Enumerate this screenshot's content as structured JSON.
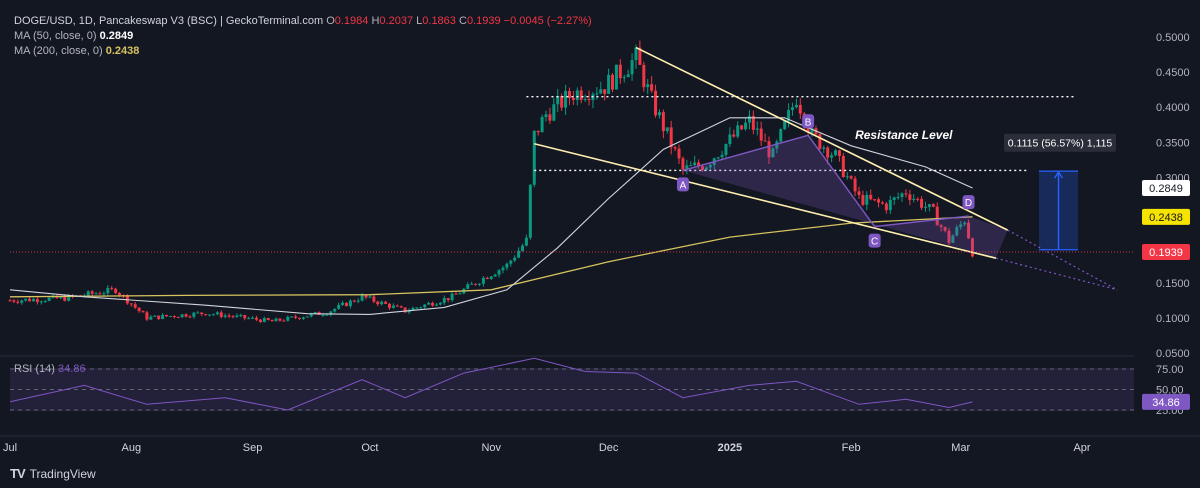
{
  "legend": {
    "pair": "DOGE/USD, 1D, Pancakeswap V3 (BSC) | GeckoTerminal.com",
    "o_label": "O",
    "o": "0.1984",
    "h_label": "H",
    "h": "0.2037",
    "l_label": "L",
    "l": "0.1863",
    "c_label": "C",
    "c": "0.1939",
    "change": "−0.0045 (−2.27%)",
    "ma50_label": "MA (50, close, 0)",
    "ma50": "0.2849",
    "ma200_label": "MA (200, close, 0)",
    "ma200": "0.2438"
  },
  "rsi_legend": {
    "label": "RSI (14)",
    "value": "34.86"
  },
  "branding": {
    "text": "TradingView"
  },
  "colors": {
    "background": "#131722",
    "up": "#089981",
    "down": "#f23645",
    "ma50": "#d1d4dc",
    "ma200": "#d6c25e",
    "rsi": "#7e57c2",
    "wedge": "#ffeeb0",
    "pattern": "#7e57c2",
    "projection": "#2962ff"
  },
  "chart_data": {
    "type": "candlestick",
    "price_axis": {
      "ticks": [
        "0.5000",
        "0.4500",
        "0.4000",
        "0.3500",
        "0.3000",
        "0.2500",
        "0.2000",
        "0.1500",
        "0.1000",
        "0.0500"
      ],
      "range": [
        0.05,
        0.5
      ]
    },
    "rsi_axis": {
      "ticks": [
        "75.00",
        "50.00",
        "25.00"
      ],
      "range": [
        20,
        80
      ]
    },
    "time_axis": [
      "Jul",
      "Aug",
      "Sep",
      "Oct",
      "Nov",
      "Dec",
      "2025",
      "Feb",
      "Mar",
      "Apr"
    ],
    "price_tags": {
      "ma50": "0.2849",
      "ma200": "0.2438",
      "last": "0.1939",
      "rsi": "34.86"
    },
    "anchors": [
      {
        "date": "2024-07-01",
        "close": 0.125
      },
      {
        "date": "2024-07-15",
        "close": 0.128
      },
      {
        "date": "2024-07-28",
        "close": 0.14
      },
      {
        "date": "2024-08-05",
        "close": 0.1
      },
      {
        "date": "2024-08-20",
        "close": 0.107
      },
      {
        "date": "2024-09-06",
        "close": 0.095
      },
      {
        "date": "2024-09-20",
        "close": 0.108
      },
      {
        "date": "2024-09-29",
        "close": 0.13
      },
      {
        "date": "2024-10-10",
        "close": 0.11
      },
      {
        "date": "2024-10-22",
        "close": 0.13
      },
      {
        "date": "2024-10-31",
        "close": 0.16
      },
      {
        "date": "2024-11-05",
        "close": 0.175
      },
      {
        "date": "2024-11-10",
        "close": 0.21
      },
      {
        "date": "2024-11-12",
        "close": 0.36
      },
      {
        "date": "2024-11-15",
        "close": 0.39
      },
      {
        "date": "2024-11-22",
        "close": 0.42
      },
      {
        "date": "2024-11-30",
        "close": 0.43
      },
      {
        "date": "2024-12-08",
        "close": 0.47
      },
      {
        "date": "2024-12-12",
        "close": 0.41
      },
      {
        "date": "2024-12-20",
        "close": 0.31
      },
      {
        "date": "2024-12-26",
        "close": 0.32
      },
      {
        "date": "2025-01-06",
        "close": 0.38
      },
      {
        "date": "2025-01-12",
        "close": 0.33
      },
      {
        "date": "2025-01-18",
        "close": 0.415
      },
      {
        "date": "2025-01-22",
        "close": 0.36
      },
      {
        "date": "2025-01-28",
        "close": 0.33
      },
      {
        "date": "2025-02-03",
        "close": 0.27
      },
      {
        "date": "2025-02-10",
        "close": 0.26
      },
      {
        "date": "2025-02-15",
        "close": 0.28
      },
      {
        "date": "2025-02-22",
        "close": 0.25
      },
      {
        "date": "2025-02-26",
        "close": 0.21
      },
      {
        "date": "2025-03-02",
        "close": 0.24
      },
      {
        "date": "2025-03-04",
        "close": 0.194
      }
    ],
    "ma50_points": [
      {
        "date": "2024-07-01",
        "value": 0.14
      },
      {
        "date": "2024-07-20",
        "value": 0.13
      },
      {
        "date": "2024-08-20",
        "value": 0.118
      },
      {
        "date": "2024-09-15",
        "value": 0.106
      },
      {
        "date": "2024-10-01",
        "value": 0.105
      },
      {
        "date": "2024-10-20",
        "value": 0.115
      },
      {
        "date": "2024-11-05",
        "value": 0.14
      },
      {
        "date": "2024-11-18",
        "value": 0.2
      },
      {
        "date": "2024-12-01",
        "value": 0.27
      },
      {
        "date": "2024-12-15",
        "value": 0.34
      },
      {
        "date": "2025-01-01",
        "value": 0.385
      },
      {
        "date": "2025-01-15",
        "value": 0.385
      },
      {
        "date": "2025-02-01",
        "value": 0.345
      },
      {
        "date": "2025-02-20",
        "value": 0.315
      },
      {
        "date": "2025-03-04",
        "value": 0.285
      }
    ],
    "ma200_points": [
      {
        "date": "2024-07-01",
        "value": 0.13
      },
      {
        "date": "2024-08-15",
        "value": 0.132
      },
      {
        "date": "2024-10-01",
        "value": 0.133
      },
      {
        "date": "2024-11-01",
        "value": 0.14
      },
      {
        "date": "2024-12-01",
        "value": 0.18
      },
      {
        "date": "2025-01-01",
        "value": 0.215
      },
      {
        "date": "2025-02-01",
        "value": 0.235
      },
      {
        "date": "2025-03-04",
        "value": 0.244
      }
    ],
    "rsi_points": [
      {
        "date": "2024-07-01",
        "value": 35
      },
      {
        "date": "2024-07-20",
        "value": 55
      },
      {
        "date": "2024-08-05",
        "value": 32
      },
      {
        "date": "2024-08-25",
        "value": 40
      },
      {
        "date": "2024-09-10",
        "value": 25
      },
      {
        "date": "2024-09-29",
        "value": 62
      },
      {
        "date": "2024-10-10",
        "value": 40
      },
      {
        "date": "2024-10-25",
        "value": 70
      },
      {
        "date": "2024-11-12",
        "value": 88
      },
      {
        "date": "2024-11-25",
        "value": 72
      },
      {
        "date": "2024-12-08",
        "value": 70
      },
      {
        "date": "2024-12-20",
        "value": 40
      },
      {
        "date": "2025-01-06",
        "value": 55
      },
      {
        "date": "2025-01-18",
        "value": 60
      },
      {
        "date": "2025-02-03",
        "value": 32
      },
      {
        "date": "2025-02-15",
        "value": 38
      },
      {
        "date": "2025-02-26",
        "value": 28
      },
      {
        "date": "2025-03-04",
        "value": 34.86
      }
    ],
    "resistance_levels": [
      0.415,
      0.31
    ],
    "annotation": "Resistance Level",
    "wedge": {
      "upper": [
        {
          "date": "2024-12-08",
          "value": 0.485
        },
        {
          "date": "2025-03-13",
          "value": 0.225
        }
      ],
      "lower": [
        {
          "date": "2024-11-12",
          "value": 0.348
        },
        {
          "date": "2025-03-10",
          "value": 0.185
        }
      ],
      "projection_upper": {
        "date": "2025-04-10",
        "value": 0.14
      },
      "projection_lower": {
        "date": "2025-04-10",
        "value": 0.14
      }
    },
    "pattern_points": [
      {
        "label": "A",
        "date": "2024-12-20",
        "value": 0.31
      },
      {
        "label": "B",
        "date": "2025-01-21",
        "value": 0.36
      },
      {
        "label": "C",
        "date": "2025-02-07",
        "value": 0.23
      },
      {
        "label": "D",
        "date": "2025-03-03",
        "value": 0.245
      }
    ],
    "projection": {
      "label": "0.1115 (56.57%) 1,115",
      "from": 0.197,
      "to": 0.309,
      "date_start": "2025-03-21",
      "date_end": "2025-03-31"
    }
  }
}
